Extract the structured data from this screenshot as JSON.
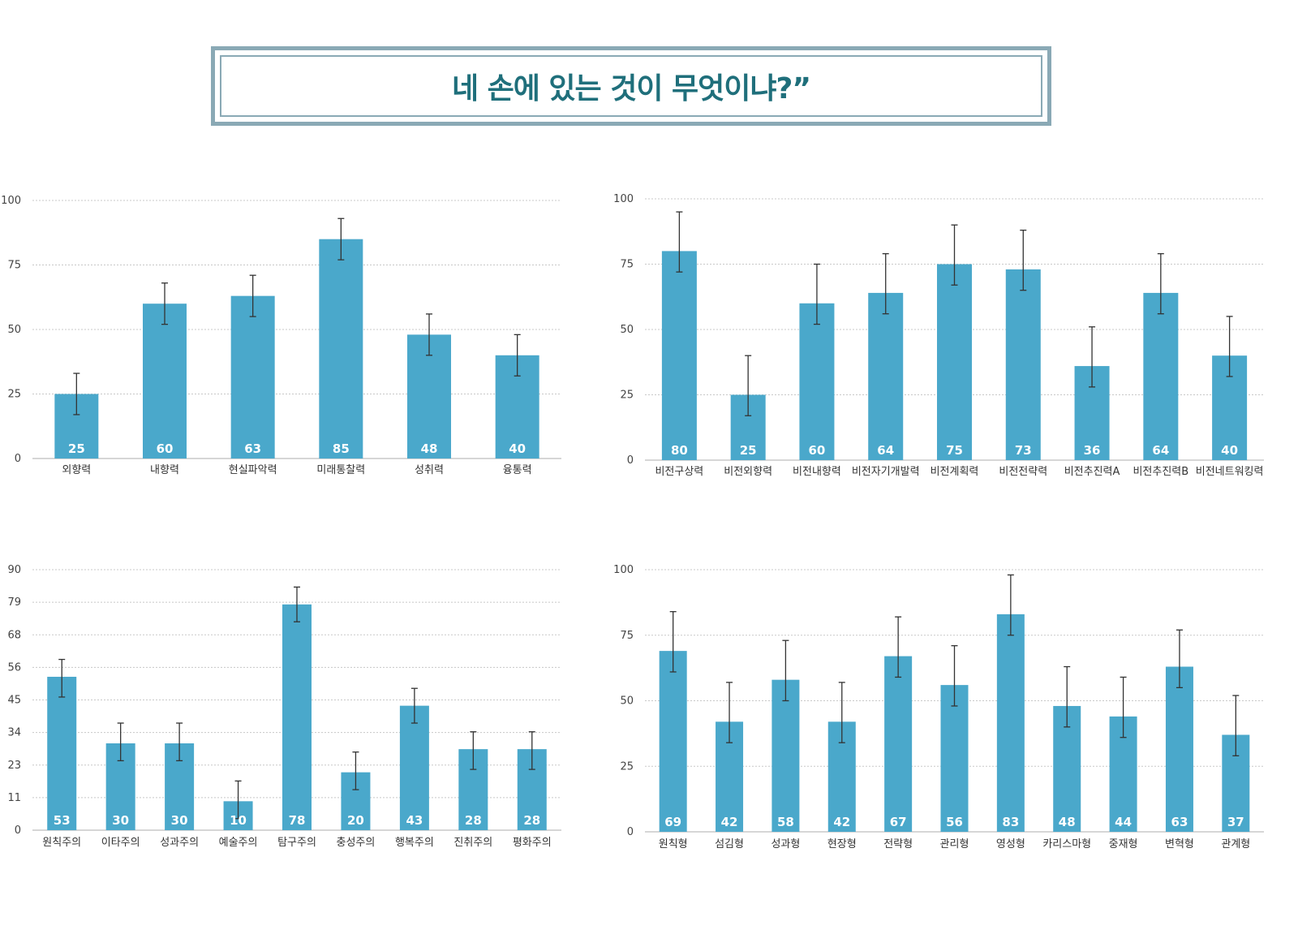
{
  "title": "네 손에 있는 것이 무엇이냐?”",
  "colors": {
    "bar": "#4aa8cb",
    "frame": "#8aa9b5",
    "title": "#1f6f7b",
    "grid": "#c8c8c8",
    "error": "#333333"
  },
  "chart_data": [
    {
      "type": "bar",
      "categories": [
        "외향력",
        "내향력",
        "현실파악력",
        "미래통찰력",
        "성취력",
        "융통력"
      ],
      "values": [
        25,
        60,
        63,
        85,
        48,
        40
      ],
      "error_low": [
        17,
        52,
        55,
        77,
        40,
        32
      ],
      "error_high": [
        33,
        68,
        71,
        93,
        56,
        48
      ],
      "value_labels": [
        "25",
        "60",
        "63",
        "85",
        "48",
        "40"
      ],
      "ylim": [
        0,
        100
      ],
      "yticks": [
        "0",
        "25",
        "50",
        "75",
        "100"
      ],
      "grid": true
    },
    {
      "type": "bar",
      "categories": [
        "비전구상력",
        "비전외향력",
        "비전내향력",
        "비전자기개발력",
        "비전계획력",
        "비전전략력",
        "비전추진력A",
        "비전추진력B",
        "비전네트워킹력"
      ],
      "values": [
        80,
        25,
        60,
        64,
        75,
        73,
        36,
        64,
        40
      ],
      "error_low": [
        72,
        17,
        52,
        56,
        67,
        65,
        28,
        56,
        32
      ],
      "error_high": [
        95,
        40,
        75,
        79,
        90,
        88,
        51,
        79,
        55
      ],
      "value_labels": [
        "80",
        "25",
        "60",
        "64",
        "75",
        "73",
        "36",
        "64",
        "40"
      ],
      "ylim": [
        0,
        100
      ],
      "yticks": [
        "0",
        "25",
        "50",
        "75",
        "100"
      ],
      "grid": true
    },
    {
      "type": "bar",
      "categories": [
        "원칙주의",
        "이타주의",
        "성과주의",
        "예술주의",
        "탐구주의",
        "충성주의",
        "행복주의",
        "진취주의",
        "평화주의"
      ],
      "values": [
        53,
        30,
        30,
        10,
        78,
        20,
        43,
        28,
        28
      ],
      "error_low": [
        46,
        24,
        24,
        4,
        72,
        14,
        37,
        21,
        21
      ],
      "error_high": [
        59,
        37,
        37,
        17,
        84,
        27,
        49,
        34,
        34
      ],
      "value_labels": [
        "53",
        "30",
        "30",
        "10",
        "78",
        "20",
        "43",
        "28",
        "28"
      ],
      "ylim": [
        0,
        90
      ],
      "yticks": [
        "0",
        "11",
        "23",
        "34",
        "45",
        "56",
        "68",
        "79",
        "90"
      ],
      "grid": true
    },
    {
      "type": "bar",
      "categories": [
        "원칙형",
        "섬김형",
        "성과형",
        "현장형",
        "전략형",
        "관리형",
        "영성형",
        "카리스마형",
        "중재형",
        "변혁형",
        "관계형"
      ],
      "values": [
        69,
        42,
        58,
        42,
        67,
        56,
        83,
        48,
        44,
        63,
        37
      ],
      "error_low": [
        61,
        34,
        50,
        34,
        59,
        48,
        75,
        40,
        36,
        55,
        29
      ],
      "error_high": [
        84,
        57,
        73,
        57,
        82,
        71,
        98,
        63,
        59,
        77,
        52
      ],
      "value_labels": [
        "69",
        "42",
        "58",
        "42",
        "67",
        "56",
        "83",
        "48",
        "44",
        "63",
        "37"
      ],
      "ylim": [
        0,
        100
      ],
      "yticks": [
        "0",
        "25",
        "50",
        "75",
        "100"
      ],
      "grid": true
    }
  ]
}
